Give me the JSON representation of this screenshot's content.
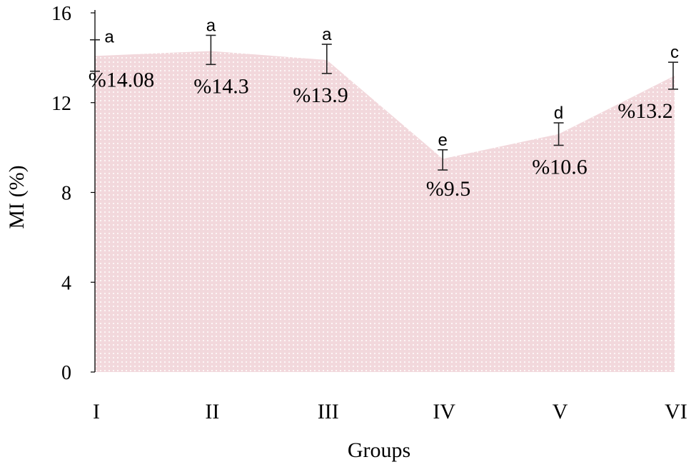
{
  "chart_data": {
    "type": "area",
    "categories": [
      "I",
      "II",
      "III",
      "IV",
      "V",
      "VI"
    ],
    "values": [
      14.08,
      14.3,
      13.9,
      9.5,
      10.6,
      13.2
    ],
    "error_low": [
      13.4,
      13.7,
      13.3,
      9.0,
      10.1,
      12.6
    ],
    "error_high": [
      14.8,
      15.0,
      14.6,
      9.9,
      11.1,
      13.8
    ],
    "value_labels": [
      "%14.08",
      "%14.3",
      "%13.9",
      "%9.5",
      "%10.6",
      "%13.2"
    ],
    "significance_letters": [
      "a",
      "a",
      "a",
      "e",
      "d",
      "c"
    ],
    "xlabel": "Groups",
    "ylabel": "MI (%)",
    "ylim": [
      0,
      16
    ],
    "yticks": [
      0,
      4,
      8,
      12,
      16
    ],
    "grid": false,
    "fill_color": "#f2d8dc",
    "dot_color": "#ffffff",
    "axis_color": "#000000",
    "error_bar_color": "#222222"
  }
}
